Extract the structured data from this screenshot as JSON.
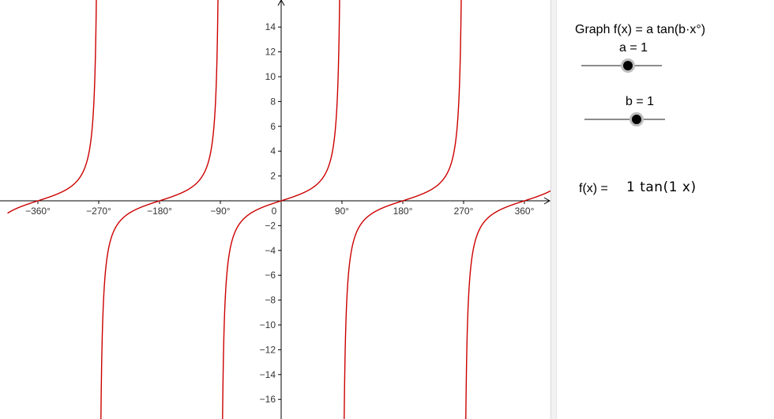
{
  "graph": {
    "x_tick_labels": [
      "−360°",
      "−270°",
      "−180°",
      "−90°",
      "0",
      "90°",
      "180°",
      "270°",
      "360°"
    ],
    "y_tick_labels": [
      "14",
      "12",
      "10",
      "8",
      "6",
      "4",
      "2",
      "−2",
      "−4",
      "−6",
      "−8",
      "−10",
      "−12",
      "−14",
      "−16"
    ],
    "x_ticks_deg": [
      -360,
      -270,
      -180,
      -90,
      0,
      90,
      180,
      270,
      360
    ],
    "y_ticks": [
      14,
      12,
      10,
      8,
      6,
      4,
      2,
      -2,
      -4,
      -6,
      -8,
      -10,
      -12,
      -14,
      -16
    ],
    "curve_color": "#cc0000",
    "axis_color": "#000000"
  },
  "chart_data": {
    "type": "line",
    "function": "f(x) = 1 tan(1 x)",
    "xlim": [
      -405,
      405
    ],
    "ylim": [
      -17.5,
      16.3
    ],
    "a": 1,
    "b": 1
  },
  "panel": {
    "title": "Graph f(x) = a tan(b·x°)",
    "slider_a": {
      "label": "a = 1",
      "value": 1
    },
    "slider_b": {
      "label": "b = 1",
      "value": 1
    },
    "fx_label": "f(x) =",
    "fx_expression": "1  tan(1 x)"
  }
}
